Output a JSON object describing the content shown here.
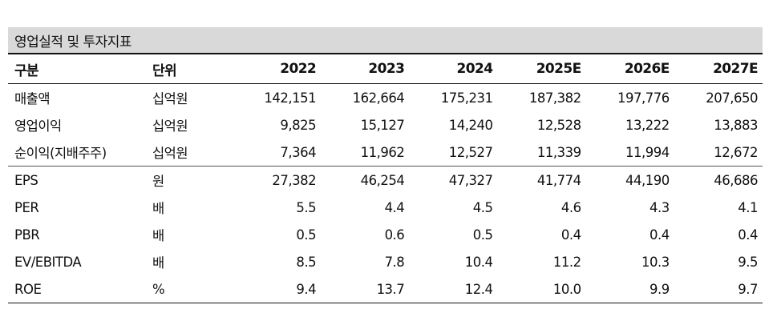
{
  "title": "영업실적 및 투자지표",
  "header": {
    "label": "구분",
    "unit": "단위",
    "years": [
      "2022",
      "2023",
      "2024",
      "2025E",
      "2026E",
      "2027E"
    ]
  },
  "rows": [
    {
      "label": "매출액",
      "unit": "십억원",
      "values": [
        "142,151",
        "162,664",
        "175,231",
        "187,382",
        "197,776",
        "207,650"
      ]
    },
    {
      "label": "영업이익",
      "unit": "십억원",
      "values": [
        "9,825",
        "15,127",
        "14,240",
        "12,528",
        "13,222",
        "13,883"
      ]
    },
    {
      "label": "순이익(지배주주)",
      "unit": "십억원",
      "values": [
        "7,364",
        "11,962",
        "12,527",
        "11,339",
        "11,994",
        "12,672"
      ]
    },
    {
      "label": "EPS",
      "unit": "원",
      "values": [
        "27,382",
        "46,254",
        "47,327",
        "41,774",
        "44,190",
        "46,686"
      ]
    },
    {
      "label": "PER",
      "unit": "배",
      "values": [
        "5.5",
        "4.4",
        "4.5",
        "4.6",
        "4.3",
        "4.1"
      ]
    },
    {
      "label": "PBR",
      "unit": "배",
      "values": [
        "0.5",
        "0.6",
        "0.5",
        "0.4",
        "0.4",
        "0.4"
      ]
    },
    {
      "label": "EV/EBITDA",
      "unit": "배",
      "values": [
        "8.5",
        "7.8",
        "10.4",
        "11.2",
        "10.3",
        "9.5"
      ]
    },
    {
      "label": "ROE",
      "unit": "%",
      "values": [
        "9.4",
        "13.7",
        "12.4",
        "10.0",
        "9.9",
        "9.7"
      ]
    }
  ]
}
